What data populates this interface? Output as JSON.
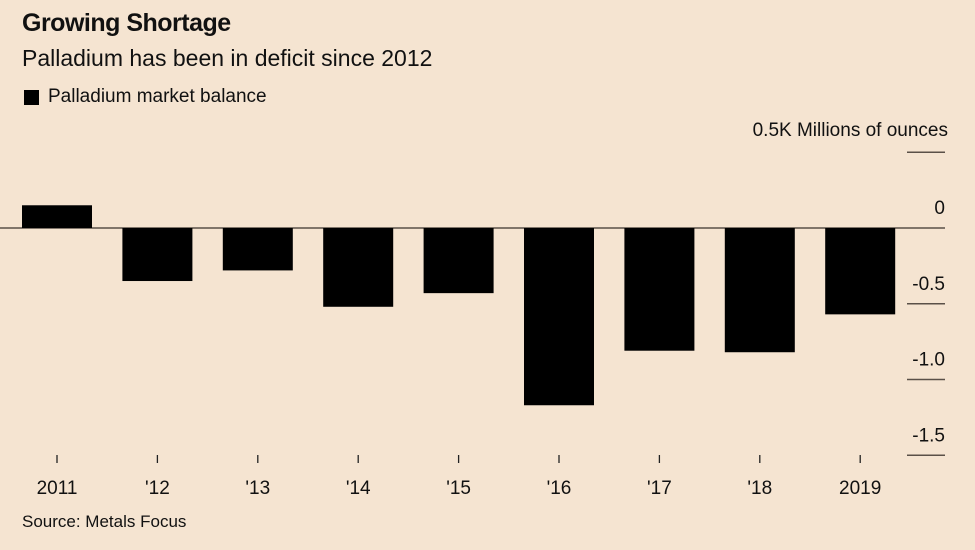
{
  "header": {
    "title": "Growing Shortage",
    "subtitle": "Palladium has been in deficit since 2012"
  },
  "legend": {
    "label": "Palladium market balance"
  },
  "unit_label": "0.5K Millions of ounces",
  "source": "Source: Metals Focus",
  "chart_data": {
    "type": "bar",
    "title": "Growing Shortage",
    "subtitle": "Palladium has been in deficit since 2012",
    "xlabel": "",
    "ylabel": "Millions of ounces",
    "categories": [
      "2011",
      "'12",
      "'13",
      "'14",
      "'15",
      "'16",
      "'17",
      "'18",
      "2019"
    ],
    "series": [
      {
        "name": "Palladium market balance",
        "color": "#000000",
        "values": [
          0.15,
          -0.35,
          -0.28,
          -0.52,
          -0.43,
          -1.17,
          -0.81,
          -0.82,
          -0.57
        ]
      }
    ],
    "ylim": [
      -1.5,
      0.5
    ],
    "yticks": [
      0.5,
      0,
      -0.5,
      -1.0,
      -1.5
    ],
    "ytick_labels": [
      "0.5K",
      "0",
      "-0.5",
      "-1.0",
      "-1.5"
    ],
    "y_axis_position": "right",
    "legend_position": "top-left",
    "grid": false
  },
  "colors": {
    "background": "#f5e4d1",
    "bar": "#000000",
    "axis": "#5a5048"
  }
}
